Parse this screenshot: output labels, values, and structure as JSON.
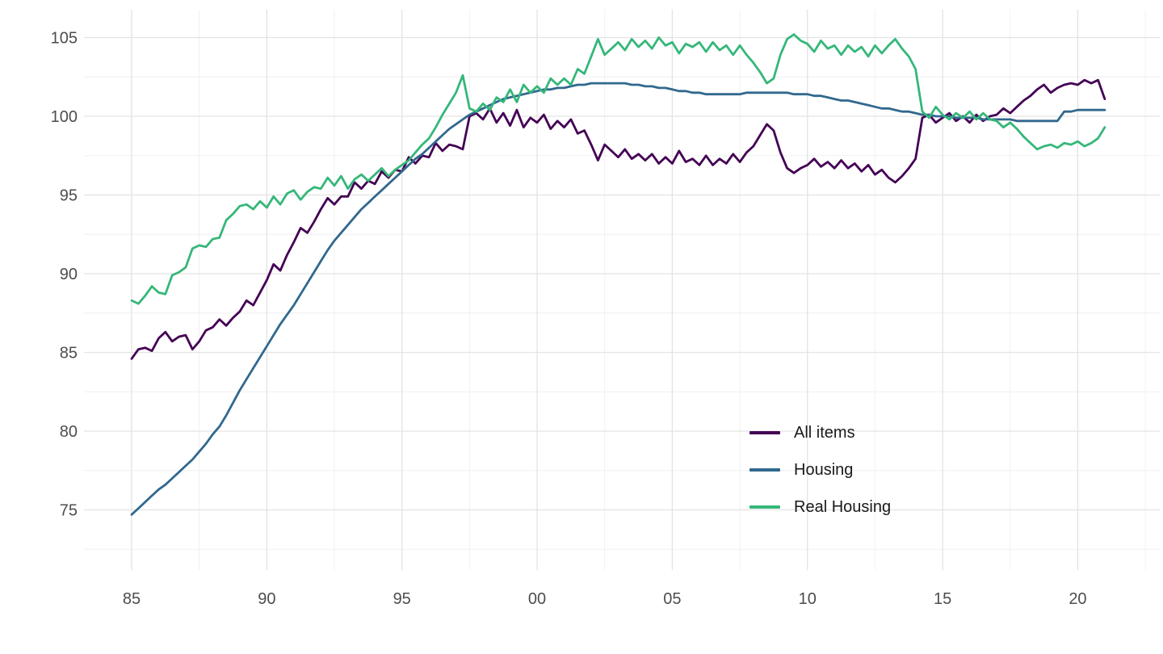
{
  "chart_data": {
    "type": "line",
    "title": "",
    "xlabel": "",
    "ylabel": "",
    "xlim": [
      1983.3,
      2023.1
    ],
    "ylim": [
      72.3,
      106.8
    ],
    "grid": "major+minor",
    "legend_position": "inside-right-lower",
    "background": "#ffffff",
    "axis_text_color": "#4d4d4d",
    "grid_major_color": "#e3e3e3",
    "grid_minor_color": "#efefef",
    "x_start": 1985.0,
    "x_step": 0.25,
    "x_ticks": [
      {
        "t": 1985,
        "label": "85"
      },
      {
        "t": 1990,
        "label": "90"
      },
      {
        "t": 1995,
        "label": "95"
      },
      {
        "t": 2000,
        "label": "00"
      },
      {
        "t": 2005,
        "label": "05"
      },
      {
        "t": 2010,
        "label": "10"
      },
      {
        "t": 2015,
        "label": "15"
      },
      {
        "t": 2020,
        "label": "20"
      }
    ],
    "x_minor_ticks": [
      1987.5,
      1992.5,
      1997.5,
      2002.5,
      2007.5,
      2012.5,
      2017.5,
      2022.5
    ],
    "y_ticks": [
      {
        "v": 75,
        "label": "75"
      },
      {
        "v": 80,
        "label": "80"
      },
      {
        "v": 85,
        "label": "85"
      },
      {
        "v": 90,
        "label": "90"
      },
      {
        "v": 95,
        "label": "95"
      },
      {
        "v": 100,
        "label": "100"
      },
      {
        "v": 105,
        "label": "105"
      }
    ],
    "y_minor_ticks": [
      72.5,
      77.5,
      82.5,
      87.5,
      92.5,
      97.5,
      102.5
    ],
    "series": [
      {
        "name": "All items",
        "color": "#440154",
        "values": [
          84.6,
          85.2,
          85.3,
          85.1,
          85.9,
          86.3,
          85.7,
          86.0,
          86.1,
          85.2,
          85.7,
          86.4,
          86.6,
          87.1,
          86.7,
          87.2,
          87.6,
          88.3,
          88.0,
          88.8,
          89.6,
          90.6,
          90.2,
          91.2,
          92.0,
          92.9,
          92.6,
          93.3,
          94.1,
          94.8,
          94.4,
          94.9,
          94.9,
          95.8,
          95.4,
          95.9,
          95.7,
          96.5,
          96.1,
          96.6,
          96.5,
          97.4,
          97.0,
          97.5,
          97.4,
          98.3,
          97.8,
          98.2,
          98.1,
          97.9,
          100.0,
          100.2,
          99.8,
          100.5,
          99.6,
          100.2,
          99.4,
          100.4,
          99.3,
          99.9,
          99.6,
          100.1,
          99.2,
          99.7,
          99.3,
          99.8,
          98.9,
          99.1,
          98.2,
          97.2,
          98.2,
          97.8,
          97.4,
          97.9,
          97.3,
          97.6,
          97.2,
          97.6,
          97.0,
          97.4,
          97.0,
          97.8,
          97.1,
          97.3,
          96.9,
          97.5,
          96.9,
          97.3,
          97.0,
          97.6,
          97.1,
          97.7,
          98.1,
          98.8,
          99.5,
          99.1,
          97.7,
          96.7,
          96.4,
          96.7,
          96.9,
          97.3,
          96.8,
          97.1,
          96.7,
          97.2,
          96.7,
          97.0,
          96.5,
          96.9,
          96.3,
          96.6,
          96.1,
          95.8,
          96.2,
          96.7,
          97.3,
          99.9,
          100.1,
          99.6,
          99.9,
          100.2,
          99.7,
          100.0,
          99.6,
          100.1,
          99.7,
          100.0,
          100.1,
          100.5,
          100.2,
          100.6,
          101.0,
          101.3,
          101.7,
          102.0,
          101.5,
          101.8,
          102.0,
          102.1,
          102.0,
          102.3,
          102.1,
          102.3,
          101.1
        ]
      },
      {
        "name": "Housing",
        "color": "#31688e",
        "values": [
          74.7,
          75.1,
          75.5,
          75.9,
          76.3,
          76.6,
          77.0,
          77.4,
          77.8,
          78.2,
          78.7,
          79.2,
          79.8,
          80.3,
          81.0,
          81.8,
          82.6,
          83.3,
          84.0,
          84.7,
          85.4,
          86.1,
          86.8,
          87.4,
          88.0,
          88.7,
          89.4,
          90.1,
          90.8,
          91.5,
          92.1,
          92.6,
          93.1,
          93.6,
          94.1,
          94.5,
          94.9,
          95.3,
          95.7,
          96.1,
          96.5,
          96.9,
          97.3,
          97.6,
          98.0,
          98.4,
          98.8,
          99.2,
          99.5,
          99.8,
          100.1,
          100.3,
          100.5,
          100.7,
          100.9,
          101.1,
          101.2,
          101.3,
          101.4,
          101.5,
          101.6,
          101.7,
          101.7,
          101.8,
          101.8,
          101.9,
          102.0,
          102.0,
          102.1,
          102.1,
          102.1,
          102.1,
          102.1,
          102.1,
          102.0,
          102.0,
          101.9,
          101.9,
          101.8,
          101.8,
          101.7,
          101.6,
          101.6,
          101.5,
          101.5,
          101.4,
          101.4,
          101.4,
          101.4,
          101.4,
          101.4,
          101.5,
          101.5,
          101.5,
          101.5,
          101.5,
          101.5,
          101.5,
          101.4,
          101.4,
          101.4,
          101.3,
          101.3,
          101.2,
          101.1,
          101.0,
          101.0,
          100.9,
          100.8,
          100.7,
          100.6,
          100.5,
          100.5,
          100.4,
          100.3,
          100.3,
          100.2,
          100.1,
          100.1,
          100.0,
          100.0,
          100.0,
          99.9,
          99.9,
          99.9,
          99.9,
          99.8,
          99.8,
          99.8,
          99.8,
          99.8,
          99.7,
          99.7,
          99.7,
          99.7,
          99.7,
          99.7,
          99.7,
          100.3,
          100.3,
          100.4,
          100.4,
          100.4,
          100.4,
          100.4
        ]
      },
      {
        "name": "Real Housing",
        "color": "#35b779",
        "values": [
          88.3,
          88.1,
          88.6,
          89.2,
          88.8,
          88.7,
          89.9,
          90.1,
          90.4,
          91.6,
          91.8,
          91.7,
          92.2,
          92.3,
          93.4,
          93.8,
          94.3,
          94.4,
          94.1,
          94.6,
          94.2,
          94.9,
          94.4,
          95.1,
          95.3,
          94.7,
          95.2,
          95.5,
          95.4,
          96.1,
          95.6,
          96.2,
          95.4,
          96.0,
          96.3,
          95.9,
          96.3,
          96.7,
          96.2,
          96.6,
          96.9,
          97.2,
          97.7,
          98.2,
          98.6,
          99.3,
          100.1,
          100.8,
          101.5,
          102.6,
          100.5,
          100.3,
          100.8,
          100.4,
          101.2,
          100.9,
          101.7,
          100.9,
          102.0,
          101.5,
          101.9,
          101.5,
          102.4,
          102.0,
          102.4,
          102.0,
          103.0,
          102.7,
          103.8,
          104.9,
          103.9,
          104.3,
          104.7,
          104.2,
          104.9,
          104.4,
          104.8,
          104.3,
          105.0,
          104.5,
          104.7,
          104.0,
          104.6,
          104.4,
          104.7,
          104.1,
          104.7,
          104.2,
          104.5,
          103.9,
          104.5,
          103.9,
          103.4,
          102.8,
          102.1,
          102.4,
          103.9,
          104.9,
          105.2,
          104.8,
          104.6,
          104.1,
          104.8,
          104.3,
          104.5,
          103.9,
          104.5,
          104.1,
          104.4,
          103.8,
          104.5,
          104.0,
          104.5,
          104.9,
          104.3,
          103.8,
          103.0,
          100.3,
          99.9,
          100.6,
          100.1,
          99.8,
          100.2,
          99.9,
          100.3,
          99.8,
          100.2,
          99.8,
          99.7,
          99.3,
          99.6,
          99.2,
          98.7,
          98.3,
          97.9,
          98.1,
          98.2,
          98.0,
          98.3,
          98.2,
          98.4,
          98.1,
          98.3,
          98.6,
          99.3
        ]
      }
    ]
  }
}
